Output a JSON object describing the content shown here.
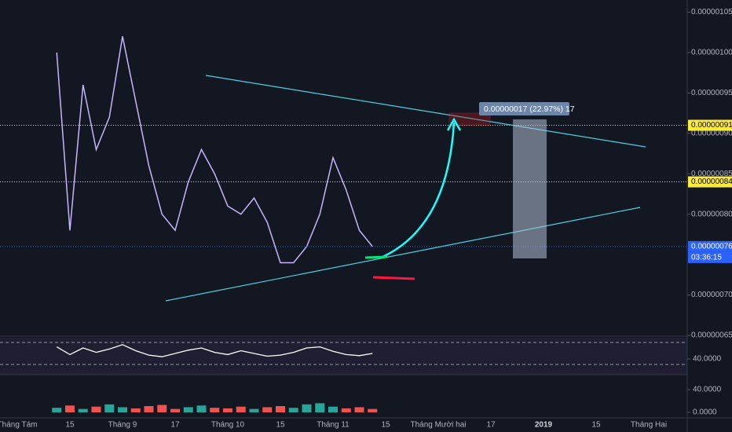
{
  "chart_data": {
    "type": "line",
    "categories": [
      "Tháng Tám",
      null,
      null,
      null,
      "15",
      null,
      null,
      null,
      "Tháng 9",
      null,
      null,
      null,
      "17",
      null,
      null,
      null,
      "Tháng 10",
      null,
      null,
      null,
      "15",
      null,
      null,
      null,
      "Tháng 11",
      null,
      null,
      null,
      "15",
      null,
      null,
      null,
      "Tháng Mười hai",
      null,
      null,
      null,
      "17",
      null,
      null,
      null,
      "2019",
      null,
      null,
      null,
      "15",
      null,
      null,
      null,
      "Tháng Hai"
    ],
    "values": [
      null,
      null,
      null,
      1e-06,
      7.8e-07,
      9.6e-07,
      8.8e-07,
      9.2e-07,
      1.02e-06,
      9.4e-07,
      8.6e-07,
      8e-07,
      7.8e-07,
      8.4e-07,
      8.8e-07,
      8.5e-07,
      8.1e-07,
      8e-07,
      8.2e-07,
      7.9e-07,
      7.4e-07,
      7.4e-07,
      7.6e-07,
      8e-07,
      8.7e-07,
      8.3e-07,
      7.8e-07,
      7.6e-07,
      null,
      null,
      null,
      null,
      null,
      null,
      null,
      null,
      null,
      null,
      null,
      null,
      null,
      null,
      null,
      null,
      null,
      null,
      null,
      null,
      null
    ],
    "color": "#c5b5ff",
    "ylim": [
      6.52e-07,
      1.065e-06
    ],
    "yticks": [
      {
        "value": 1.05e-06,
        "label": "0.00000105"
      },
      {
        "value": 1e-06,
        "label": "0.00000100"
      },
      {
        "value": 9.5e-07,
        "label": "0.00000095"
      },
      {
        "value": 9e-07,
        "label": "0.00000090"
      },
      {
        "value": 8.5e-07,
        "label": "0.00000085"
      },
      {
        "value": 8e-07,
        "label": "0.00000080"
      },
      {
        "value": 7e-07,
        "label": "0.00000070"
      },
      {
        "value": 6.5e-07,
        "label": "0.00000065"
      }
    ],
    "levels": [
      {
        "value": 9.1e-07,
        "label": "0.00000091",
        "color": "#ffeb3b"
      },
      {
        "value": 8.4e-07,
        "label": "0.00000084",
        "color": "#ffeb3b"
      },
      {
        "value": 7.6e-07,
        "label": "0.00000076",
        "color": "#2962ff"
      }
    ],
    "countdown": "03:36:15",
    "annotation": "0.00000017 (22.97%) 17",
    "rsi": {
      "values": [
        null,
        null,
        null,
        62,
        48,
        60,
        52,
        58,
        66,
        55,
        47,
        44,
        50,
        56,
        60,
        52,
        48,
        55,
        50,
        45,
        47,
        52,
        60,
        62,
        54,
        48,
        46,
        50,
        null,
        null,
        null,
        null,
        null,
        null,
        null,
        null,
        null,
        null,
        null,
        null,
        null,
        null,
        null,
        null,
        null,
        null,
        null,
        null,
        null
      ],
      "color": "#ffffff",
      "ylim": [
        11.4,
        78.6
      ],
      "yticks": [
        {
          "value": 40,
          "label": "40.0000"
        }
      ],
      "bands": [
        30,
        70
      ]
    },
    "volume": {
      "values": [
        null,
        null,
        null,
        8,
        12,
        6,
        10,
        14,
        9,
        7,
        11,
        13,
        6,
        9,
        12,
        8,
        7,
        10,
        6,
        9,
        11,
        8,
        14,
        16,
        10,
        7,
        9,
        6,
        null,
        null,
        null,
        null,
        null,
        null,
        null,
        null,
        null,
        null,
        null,
        null,
        null,
        null,
        null,
        null,
        null,
        null,
        null,
        null,
        null
      ],
      "up_color": "#26a69a",
      "down_color": "#ef5350",
      "ylim": [
        -6.9,
        64.8
      ],
      "yticks": [
        {
          "value": 40,
          "label": "40.0000"
        },
        {
          "value": 0,
          "label": "0.0000"
        }
      ]
    }
  }
}
